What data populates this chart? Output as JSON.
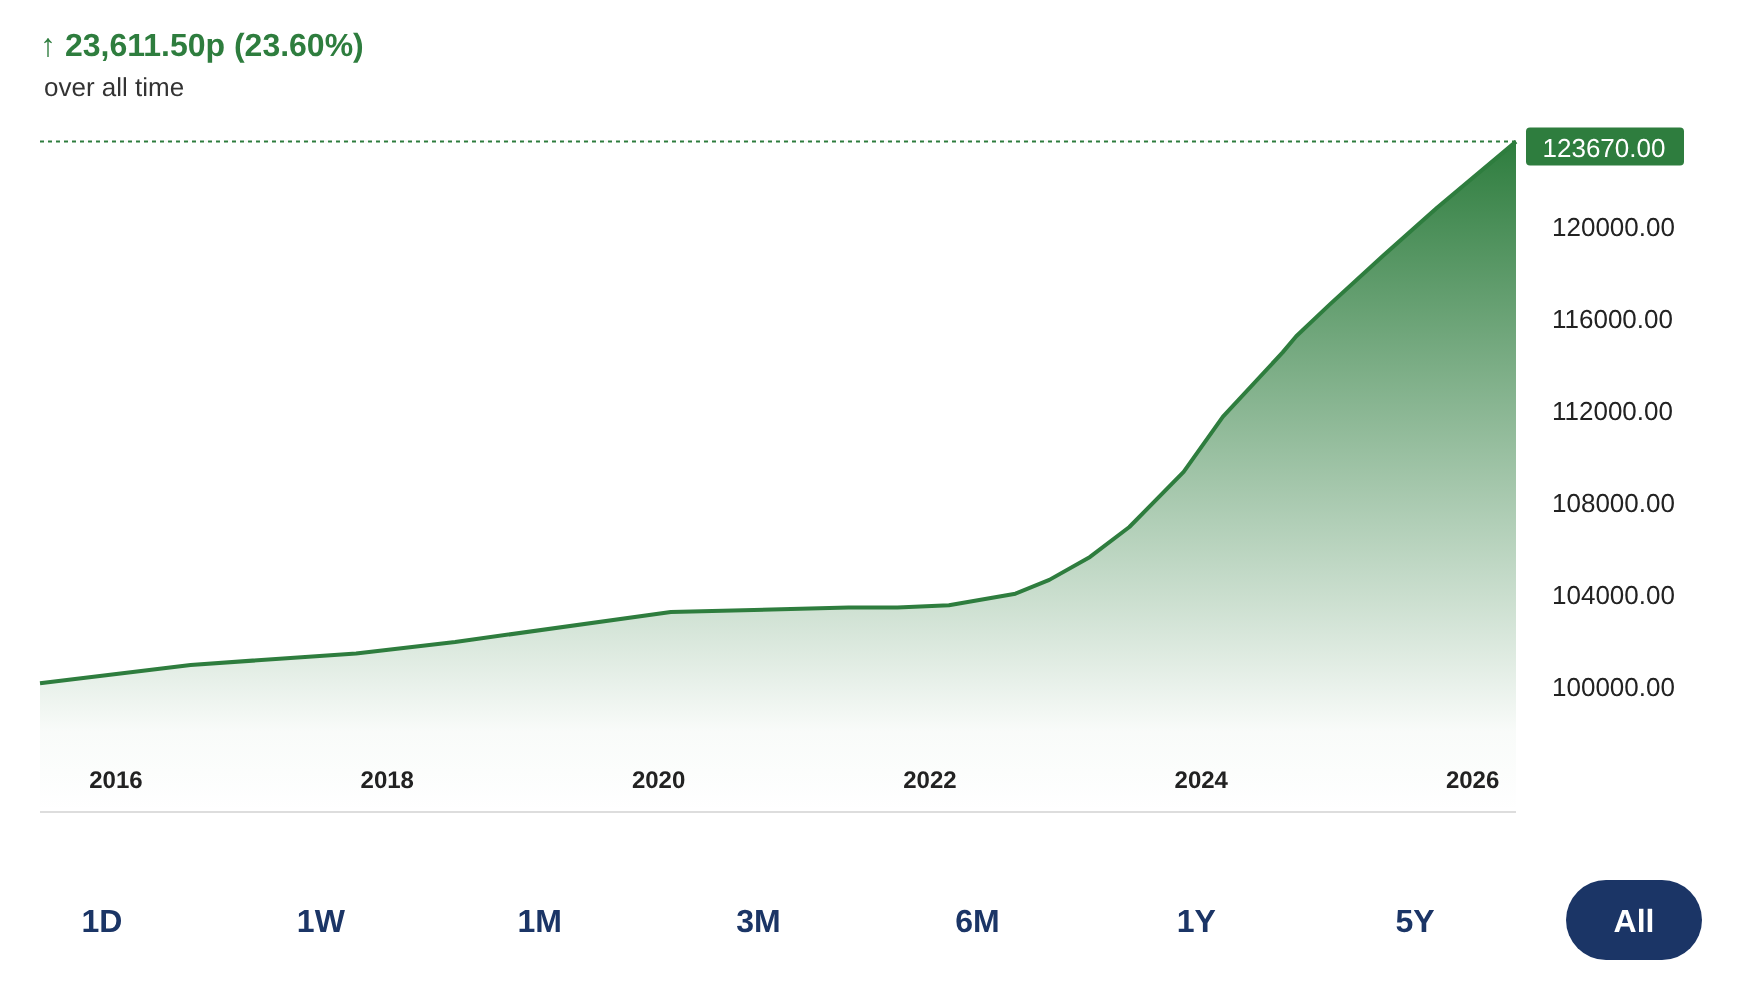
{
  "chart_data": {
    "type": "area",
    "title": "↑ 23,611.50p (23.60%)",
    "subtitle": "over all time",
    "x": [
      2015.44,
      2016.55,
      2017.77,
      2018.5,
      2020.09,
      2021.4,
      2021.76,
      2022.14,
      2022.63,
      2022.88,
      2023.18,
      2023.47,
      2023.87,
      2024.16,
      2024.6,
      2024.7,
      2024.95,
      2025.34,
      2025.74,
      2026.32
    ],
    "series": [
      {
        "color": "#2e7d3e",
        "values": [
          100100,
          100900,
          101400,
          101900,
          103200,
          103400,
          103400,
          103500,
          104000,
          104600,
          105600,
          106900,
          109300,
          111700,
          114500,
          115200,
          116600,
          118700,
          120800,
          123670
        ]
      }
    ],
    "xlim": [
      2015.44,
      2026.32
    ],
    "xticks": [
      2016,
      2018,
      2020,
      2022,
      2024,
      2026
    ],
    "ylim": [
      94500,
      123740
    ],
    "yticks": [
      {
        "value": 100000,
        "label": "100000.00"
      },
      {
        "value": 104000,
        "label": "104000.00"
      },
      {
        "value": 108000,
        "label": "108000.00"
      },
      {
        "value": 112000,
        "label": "112000.00"
      },
      {
        "value": 116000,
        "label": "116000.00"
      },
      {
        "value": 120000,
        "label": "120000.00"
      }
    ],
    "ref_lines": [
      {
        "axis": "y",
        "value": 123670,
        "label": "123670.00",
        "color": "#2e7d3e",
        "line_style": "dotted"
      }
    ],
    "annotations": [
      "1D",
      "1W",
      "1M",
      "3M",
      "6M",
      "1Y",
      "5Y",
      "All"
    ],
    "grid": false
  }
}
